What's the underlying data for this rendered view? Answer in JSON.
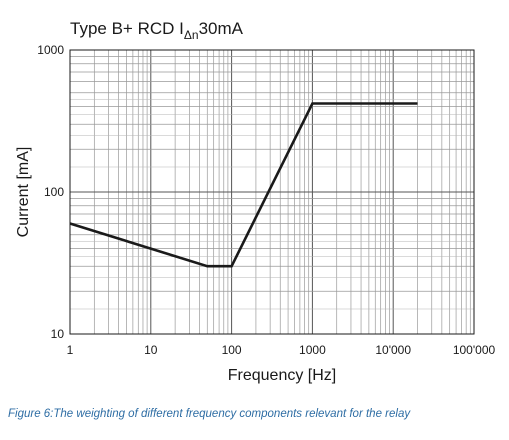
{
  "chart_data": {
    "type": "line",
    "title_main": "Type B+ RCD I",
    "title_sub": "Δn",
    "title_tail": "30mA",
    "xlabel": "Frequency [Hz]",
    "ylabel": "Current [mA]",
    "x_scale": "log",
    "y_scale": "log",
    "xlim": [
      1,
      100000
    ],
    "ylim": [
      10,
      1000
    ],
    "x_ticks": [
      1,
      10,
      100,
      1000,
      10000,
      100000
    ],
    "x_tick_labels": [
      "1",
      "10",
      "100",
      "1000",
      "10'000",
      "100'000"
    ],
    "y_ticks": [
      10,
      100,
      1000
    ],
    "y_tick_labels": [
      "10",
      "100",
      "1000"
    ],
    "grid": true,
    "series": [
      {
        "color": "#1a1a1a",
        "x": [
          1,
          50,
          100,
          1000,
          20000
        ],
        "y": [
          60,
          30,
          30,
          420,
          420
        ]
      }
    ]
  },
  "caption": "Figure 6:The weighting of different frequency components relevant for the relay"
}
